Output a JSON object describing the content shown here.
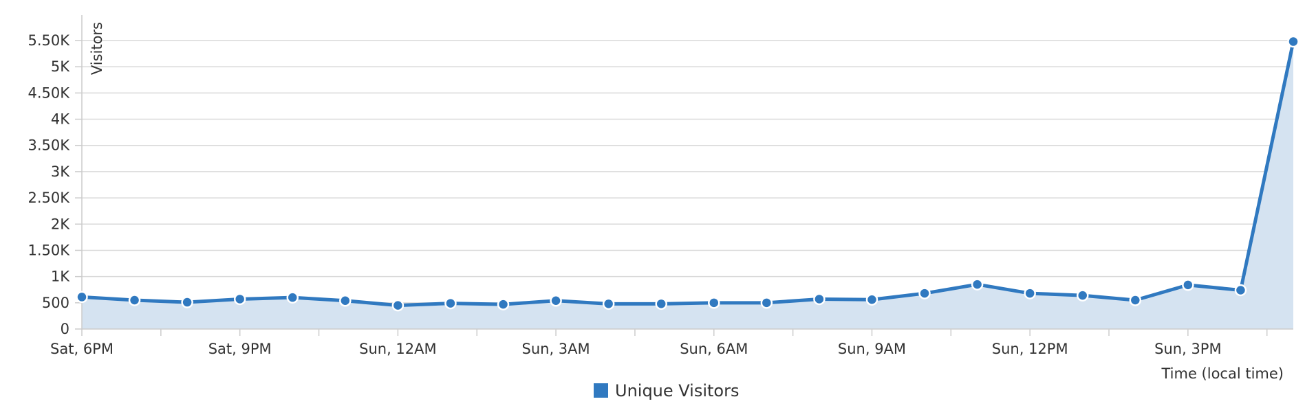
{
  "chart_data": {
    "type": "area",
    "ylabel": "Visitors",
    "xlabel": "Time (local time)",
    "ylim": [
      0,
      5500
    ],
    "y_ticks": [
      "0",
      "500",
      "1K",
      "1.50K",
      "2K",
      "2.50K",
      "3K",
      "3.50K",
      "4K",
      "4.50K",
      "5K",
      "5.50K"
    ],
    "y_tick_values": [
      0,
      500,
      1000,
      1500,
      2000,
      2500,
      3000,
      3500,
      4000,
      4500,
      5000,
      5500
    ],
    "x": [
      "Sat 6PM",
      "Sat 7PM",
      "Sat 8PM",
      "Sat 9PM",
      "Sat 10PM",
      "Sat 11PM",
      "Sun 12AM",
      "Sun 1AM",
      "Sun 2AM",
      "Sun 3AM",
      "Sun 4AM",
      "Sun 5AM",
      "Sun 6AM",
      "Sun 7AM",
      "Sun 8AM",
      "Sun 9AM",
      "Sun 10AM",
      "Sun 11AM",
      "Sun 12PM",
      "Sun 1PM",
      "Sun 2PM",
      "Sun 3PM",
      "Sun 4PM",
      "Sun 5PM"
    ],
    "x_tick_labels": [
      {
        "index": 0,
        "label": "Sat, 6PM"
      },
      {
        "index": 3,
        "label": "Sat, 9PM"
      },
      {
        "index": 6,
        "label": "Sun, 12AM"
      },
      {
        "index": 9,
        "label": "Sun, 3AM"
      },
      {
        "index": 12,
        "label": "Sun, 6AM"
      },
      {
        "index": 15,
        "label": "Sun, 9AM"
      },
      {
        "index": 18,
        "label": "Sun, 12PM"
      },
      {
        "index": 21,
        "label": "Sun, 3PM"
      }
    ],
    "series": [
      {
        "name": "Unique Visitors",
        "color": "#3079c0",
        "fill_color": "#d5e3f1",
        "values": [
          610,
          550,
          510,
          570,
          600,
          540,
          450,
          490,
          470,
          540,
          480,
          480,
          500,
          500,
          570,
          560,
          680,
          850,
          680,
          640,
          550,
          840,
          740,
          5480
        ]
      }
    ],
    "grid": true,
    "legend": "bottom-center"
  }
}
